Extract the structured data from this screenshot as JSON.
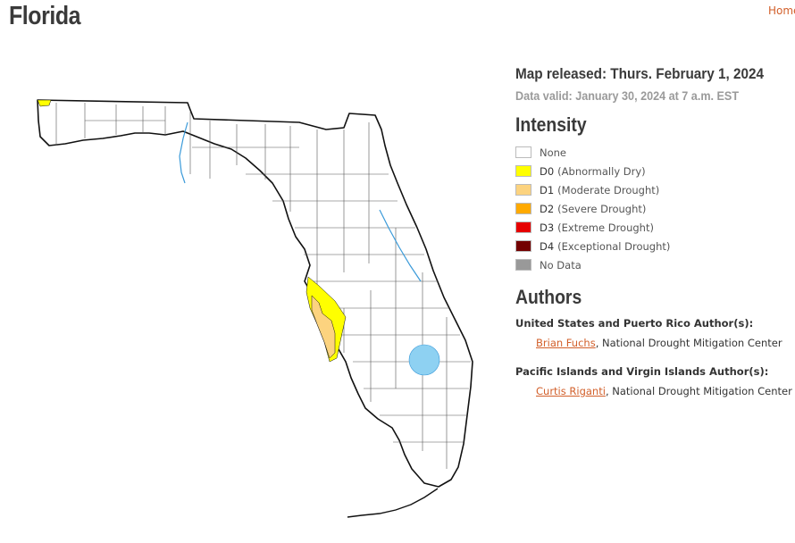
{
  "header": {
    "title": "Florida",
    "home_link": "Home"
  },
  "map": {
    "state": "Florida",
    "colors": {
      "outline": "#111111",
      "county_line": "#555555",
      "fill_none": "#ffffff",
      "d0": "#ffff00",
      "d1": "#fcd37f",
      "water": "#8ed1f2",
      "river": "#3a9ad9"
    }
  },
  "info": {
    "released": "Map released: Thurs. February 1, 2024",
    "valid": "Data valid: January 30, 2024 at 7 a.m. EST"
  },
  "legend": {
    "heading": "Intensity",
    "levels": [
      {
        "code": "",
        "desc": "None",
        "color": "#ffffff"
      },
      {
        "code": "D0",
        "desc": "(Abnormally Dry)",
        "color": "#ffff00"
      },
      {
        "code": "D1",
        "desc": "(Moderate Drought)",
        "color": "#fcd37f"
      },
      {
        "code": "D2",
        "desc": "(Severe Drought)",
        "color": "#ffaa00"
      },
      {
        "code": "D3",
        "desc": "(Extreme Drought)",
        "color": "#e60000"
      },
      {
        "code": "D4",
        "desc": "(Exceptional Drought)",
        "color": "#730000"
      },
      {
        "code": "",
        "desc": "No Data",
        "color": "#999999"
      }
    ]
  },
  "authors": {
    "heading": "Authors",
    "groups": [
      {
        "label": "United States and Puerto Rico Author(s):",
        "name": "Brian Fuchs",
        "affiliation": ", National Drought Mitigation Center"
      },
      {
        "label": "Pacific Islands and Virgin Islands Author(s):",
        "name": "Curtis Riganti",
        "affiliation": ", National Drought Mitigation Center"
      }
    ]
  }
}
